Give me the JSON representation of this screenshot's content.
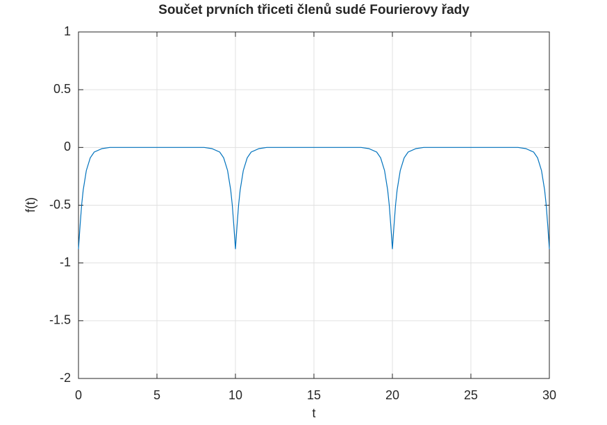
{
  "chart_data": {
    "type": "line",
    "title": "Součet prvních třiceti členů sudé Fourierovy řady",
    "xlabel": "t",
    "ylabel": "f(t)",
    "x": [
      0,
      0.1,
      0.2,
      0.3,
      0.5,
      0.75,
      1,
      1.5,
      2,
      3,
      4,
      5,
      6,
      7,
      8,
      8.5,
      9,
      9.25,
      9.5,
      9.7,
      9.8,
      9.9,
      10,
      10.1,
      10.2,
      10.3,
      10.5,
      10.75,
      11,
      11.5,
      12,
      13,
      14,
      15,
      16,
      17,
      18,
      18.5,
      19,
      19.25,
      19.5,
      19.7,
      19.8,
      19.9,
      20,
      20.1,
      20.2,
      20.3,
      20.5,
      20.75,
      21,
      21.5,
      22,
      23,
      24,
      25,
      26,
      27,
      28,
      28.5,
      29,
      29.25,
      29.5,
      29.7,
      29.8,
      29.9,
      30
    ],
    "series": [
      {
        "name": "f(t)",
        "color": "#0072bd",
        "values": [
          -0.88,
          -0.68,
          -0.5,
          -0.37,
          -0.2,
          -0.09,
          -0.04,
          -0.01,
          0,
          0,
          0,
          0,
          0,
          0,
          0,
          -0.01,
          -0.04,
          -0.09,
          -0.2,
          -0.37,
          -0.5,
          -0.68,
          -0.88,
          -0.68,
          -0.5,
          -0.37,
          -0.2,
          -0.09,
          -0.04,
          -0.01,
          0,
          0,
          0,
          0,
          0,
          0,
          0,
          -0.01,
          -0.04,
          -0.09,
          -0.2,
          -0.37,
          -0.5,
          -0.68,
          -0.88,
          -0.68,
          -0.5,
          -0.37,
          -0.2,
          -0.09,
          -0.04,
          -0.01,
          0,
          0,
          0,
          0,
          0,
          0,
          0,
          -0.01,
          -0.04,
          -0.09,
          -0.2,
          -0.37,
          -0.5,
          -0.68,
          -0.88
        ]
      }
    ],
    "xlim": [
      0,
      30
    ],
    "xticks": [
      0,
      5,
      10,
      15,
      20,
      25,
      30
    ],
    "ylim": [
      -2,
      1
    ],
    "yticks": [
      -2,
      -1.5,
      -1,
      -0.5,
      0,
      0.5,
      1
    ],
    "grid": true
  }
}
